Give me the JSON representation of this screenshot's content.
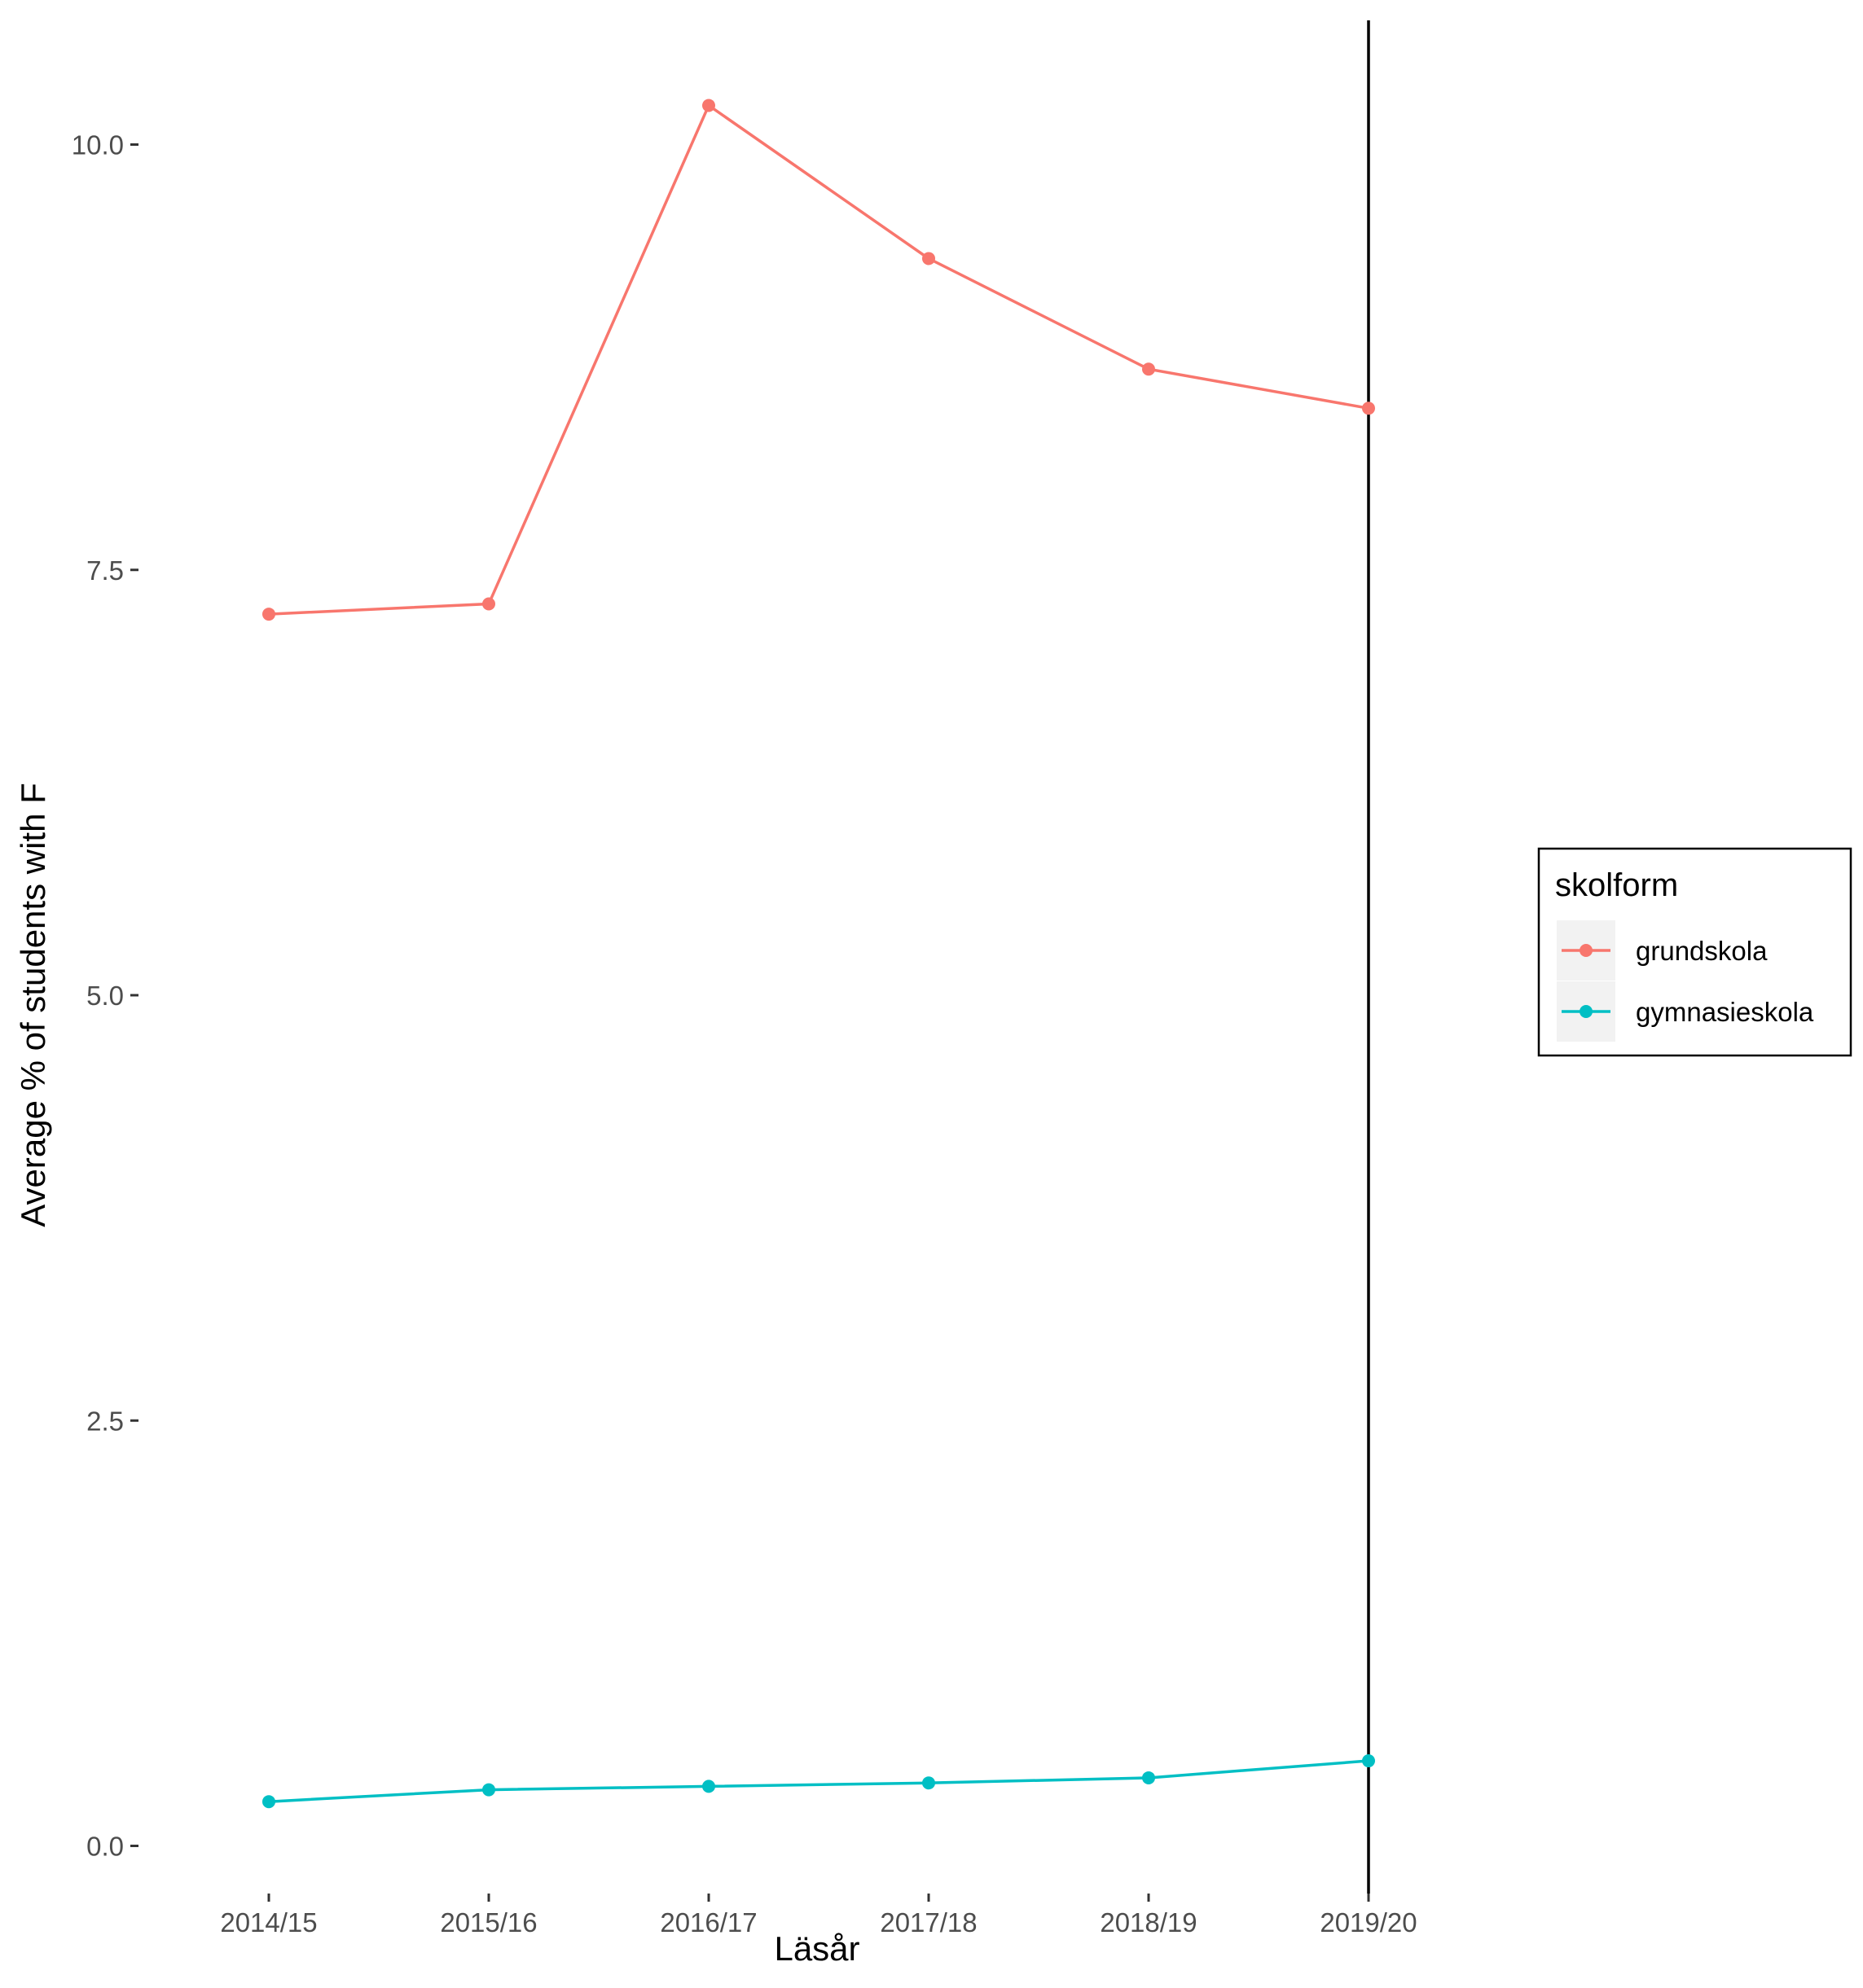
{
  "chart_data": {
    "type": "line",
    "title": "",
    "xlabel": "Läsår",
    "ylabel": "Average % of students with F",
    "categories": [
      "2014/15",
      "2015/16",
      "2016/17",
      "2017/18",
      "2018/19",
      "2019/20"
    ],
    "ylim": [
      -0.28,
      10.73
    ],
    "yticks": [
      0.0,
      2.5,
      5.0,
      7.5,
      10.0
    ],
    "ytick_labels": [
      "0.0",
      "2.5",
      "5.0",
      "7.5",
      "10.0"
    ],
    "grid": false,
    "legend": {
      "title": "skolform",
      "position": "right"
    },
    "vline_category": "2019/20",
    "series": [
      {
        "name": "grundskola",
        "color": "#F8766D",
        "values": [
          7.24,
          7.3,
          10.23,
          9.33,
          8.68,
          8.45
        ]
      },
      {
        "name": "gymnasieskola",
        "color": "#00BFC4",
        "values": [
          0.26,
          0.33,
          0.35,
          0.37,
          0.4,
          0.5
        ]
      }
    ]
  }
}
